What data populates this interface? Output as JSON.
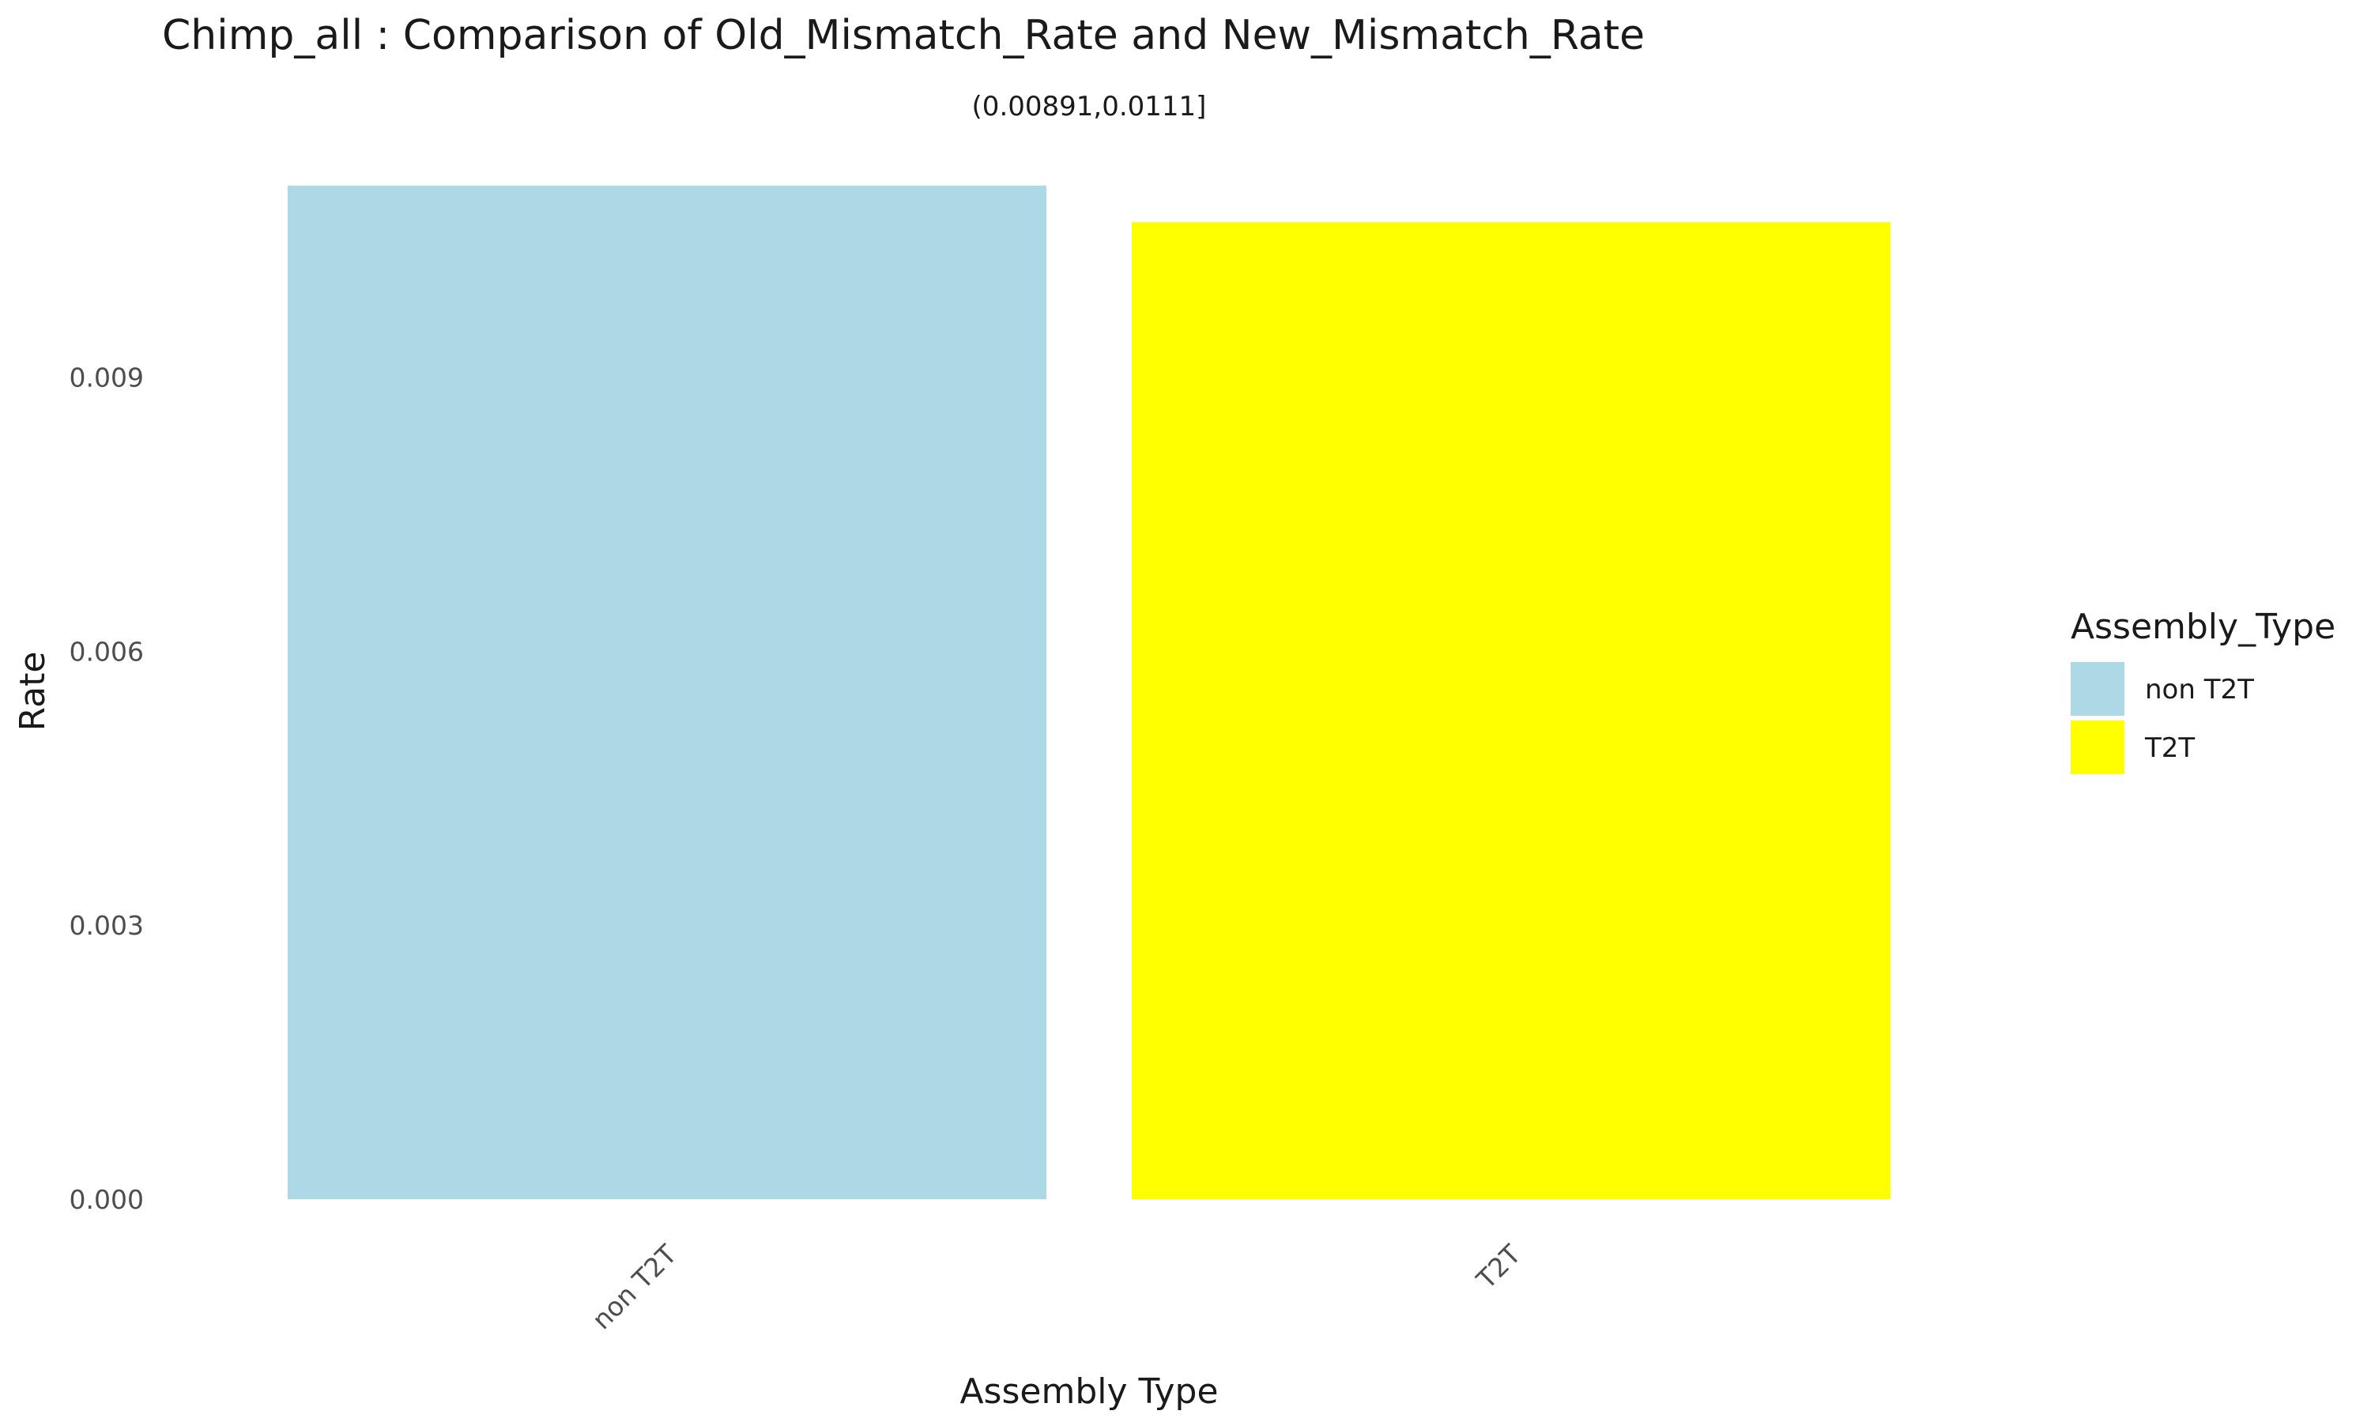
{
  "chart_data": {
    "type": "bar",
    "title": "Chimp_all : Comparison of Old_Mismatch_Rate and New_Mismatch_Rate",
    "subtitle": "(0.00891,0.0111]",
    "xlabel": "Assembly Type",
    "ylabel": "Rate",
    "categories": [
      "non T2T",
      "T2T"
    ],
    "values": [
      0.0111,
      0.0107
    ],
    "colors": [
      "#ADD8E6",
      "#FFFF00"
    ],
    "ylim": [
      0,
      0.0111
    ],
    "yticks": [
      0.0,
      0.003,
      0.006,
      0.009
    ],
    "ytick_labels": [
      "0.000",
      "0.003",
      "0.006",
      "0.009"
    ],
    "grid": false,
    "legend": {
      "title": "Assembly_Type",
      "placement": "right",
      "entries": [
        {
          "label": "non T2T",
          "color": "#ADD8E6"
        },
        {
          "label": "T2T",
          "color": "#FFFF00"
        }
      ]
    }
  }
}
